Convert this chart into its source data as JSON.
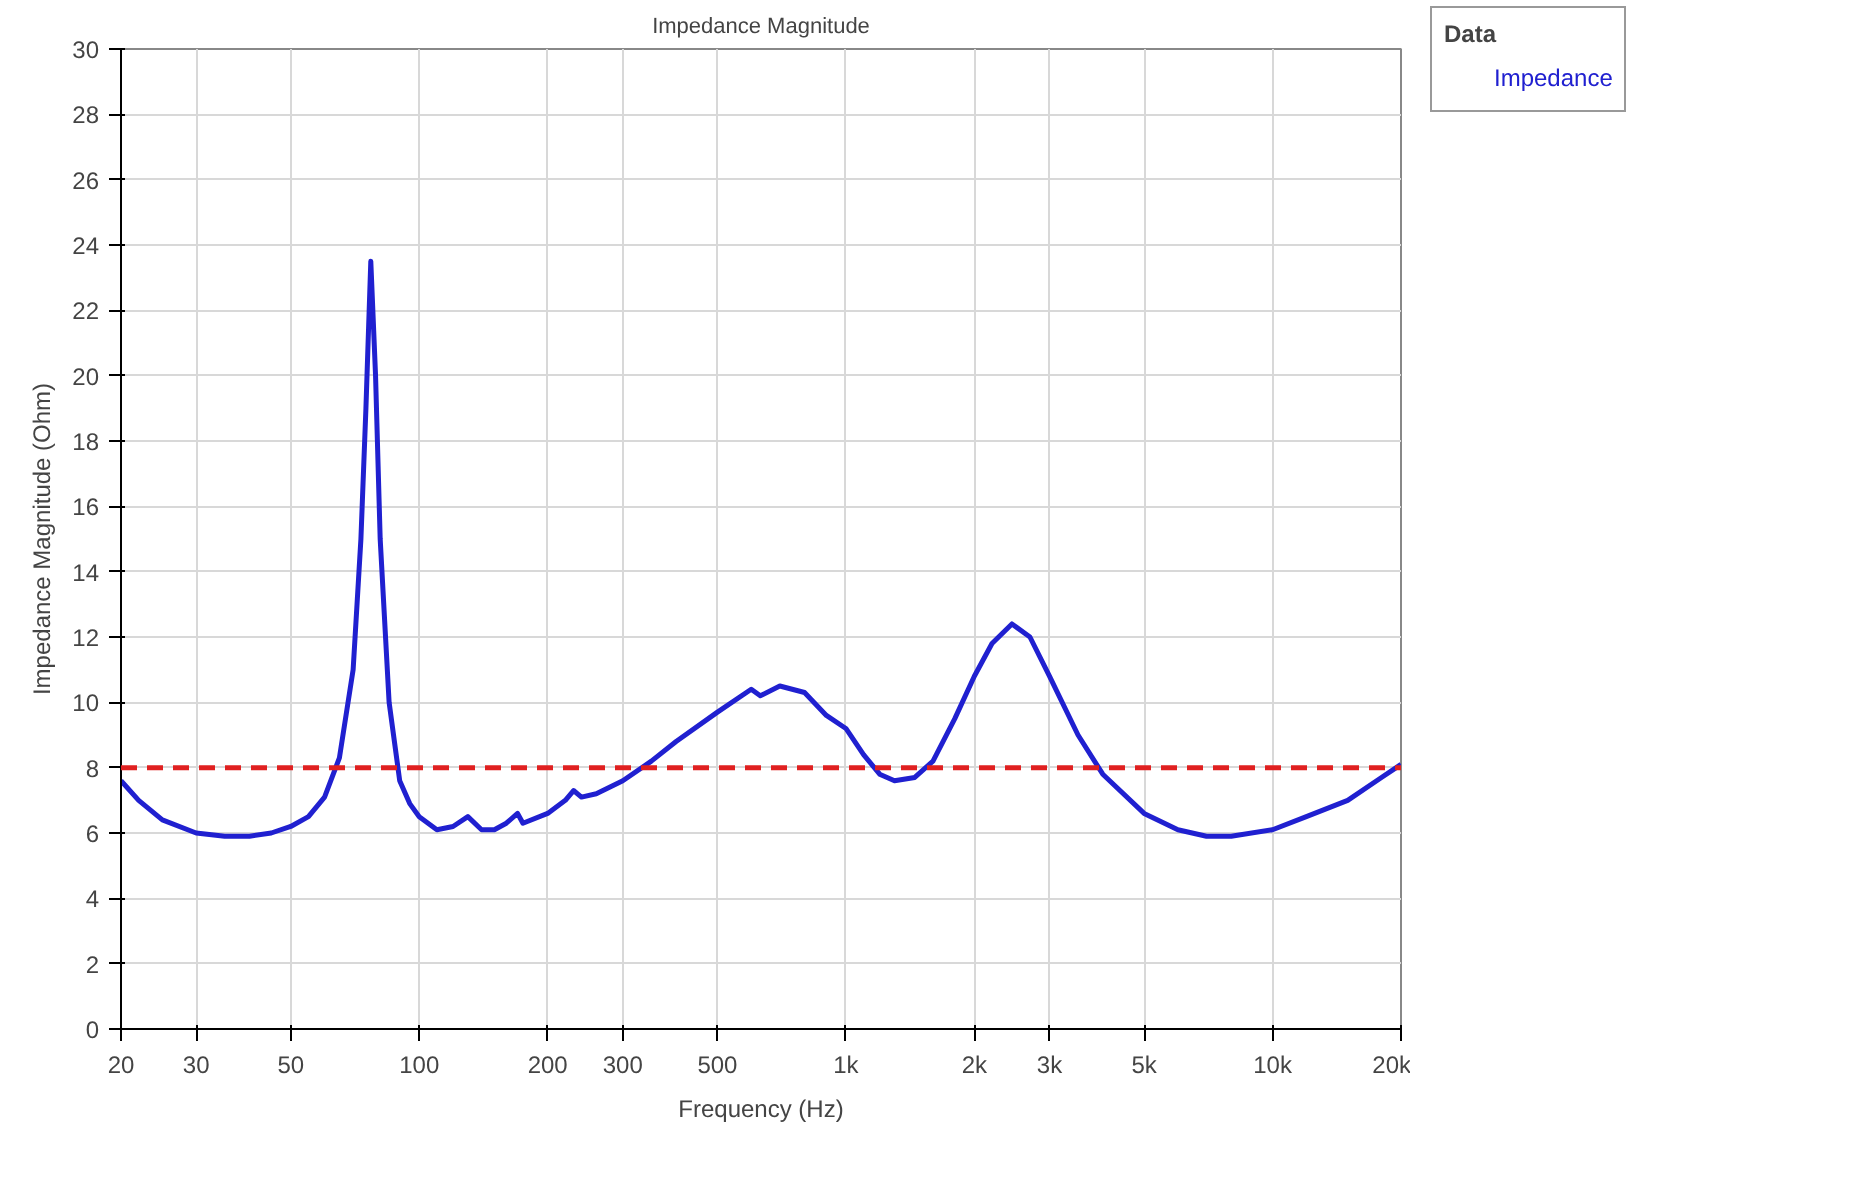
{
  "chart_data": {
    "type": "line",
    "title": "Impedance Magnitude",
    "xlabel": "Frequency (Hz)",
    "ylabel": "Impedance Magnitude (Ohm)",
    "legend_title": "Data",
    "log": "x",
    "grid": true,
    "legend": "top right",
    "line_style": "solid",
    "marker": "none",
    "x": [
      20,
      22,
      25,
      30,
      35,
      40,
      45,
      50,
      55,
      60,
      65,
      70,
      73,
      75,
      77,
      79,
      81,
      85,
      90,
      95,
      100,
      110,
      120,
      130,
      140,
      150,
      160,
      170,
      175,
      200,
      220,
      230,
      240,
      260,
      300,
      350,
      400,
      500,
      600,
      630,
      700,
      800,
      900,
      1000,
      1100,
      1200,
      1300,
      1450,
      1600,
      1800,
      2000,
      2200,
      2450,
      2700,
      3000,
      3500,
      4000,
      5000,
      6000,
      7000,
      8000,
      10000,
      12000,
      15000,
      18000,
      20000
    ],
    "series": [
      {
        "name": "Impedance",
        "color": "#2020d0",
        "values": [
          7.6,
          7.0,
          6.4,
          6.0,
          5.9,
          5.9,
          6.0,
          6.2,
          6.5,
          7.1,
          8.3,
          11,
          15,
          19,
          23.5,
          20,
          15,
          10,
          7.6,
          6.9,
          6.5,
          6.1,
          6.2,
          6.5,
          6.1,
          6.1,
          6.3,
          6.6,
          6.3,
          6.6,
          7.0,
          7.3,
          7.1,
          7.2,
          7.6,
          8.2,
          8.8,
          9.7,
          10.4,
          10.2,
          10.5,
          10.3,
          9.6,
          9.2,
          8.4,
          7.8,
          7.6,
          7.7,
          8.2,
          9.5,
          10.8,
          11.8,
          12.4,
          12.0,
          10.8,
          9.0,
          7.8,
          6.6,
          6.1,
          5.9,
          5.9,
          6.1,
          6.5,
          7.0,
          7.7,
          8.1
        ]
      }
    ],
    "ref_lines": [
      {
        "axis": "y",
        "value": 8,
        "color": "#e02020",
        "line_style": "dashed"
      }
    ],
    "xlim": [
      20,
      20000
    ],
    "ylim": [
      0,
      30
    ],
    "xticks": [
      20,
      30,
      50,
      100,
      200,
      300,
      500,
      {
        "value": 1000,
        "label": "1k"
      },
      {
        "value": 2000,
        "label": "2k"
      },
      {
        "value": 3000,
        "label": "3k"
      },
      {
        "value": 5000,
        "label": "5k"
      },
      {
        "value": 10000,
        "label": "10k"
      },
      {
        "value": 20000,
        "label": "20k"
      }
    ],
    "yticks": [
      0,
      2,
      4,
      6,
      8,
      10,
      12,
      14,
      16,
      18,
      20,
      22,
      24,
      26,
      28,
      30
    ]
  }
}
